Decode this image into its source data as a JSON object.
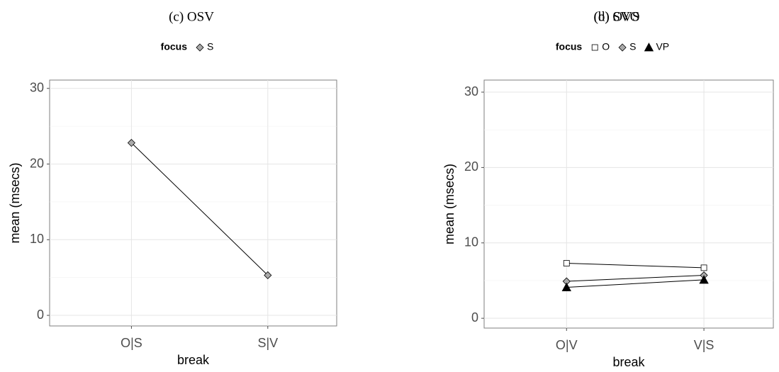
{
  "chart_data": [
    {
      "type": "line",
      "title": "(c) OSV",
      "legend_title": "focus",
      "xlabel": "break",
      "ylabel": "mean (msecs)",
      "categories": [
        "O|S",
        "S|V"
      ],
      "series": [
        {
          "name": "S",
          "color": "#aaaaaa",
          "marker": "diamond",
          "values": [
            22.8,
            5.3
          ]
        }
      ],
      "ylim": [
        -1.4,
        31.1
      ],
      "yticks": [
        0,
        10,
        20,
        30
      ],
      "grid": true
    },
    {
      "type": "line",
      "titles": [
        "(d) OVS",
        "(b) SVO"
      ],
      "legend_title": "focus",
      "xlabel": "break",
      "ylabel": "mean (msecs)",
      "categories": [
        "O|V",
        "V|S"
      ],
      "series": [
        {
          "name": "O",
          "color": "#ffffff",
          "marker": "square",
          "values": [
            7.3,
            6.7
          ]
        },
        {
          "name": "S",
          "color": "#aaaaaa",
          "marker": "diamond",
          "values": [
            4.9,
            5.7
          ]
        },
        {
          "name": "VP",
          "color": "#000000",
          "marker": "triangle",
          "values": [
            4.1,
            5.1
          ]
        }
      ],
      "ylim": [
        -1.3,
        31.6
      ],
      "yticks": [
        0,
        10,
        20,
        30
      ],
      "grid": true
    }
  ]
}
